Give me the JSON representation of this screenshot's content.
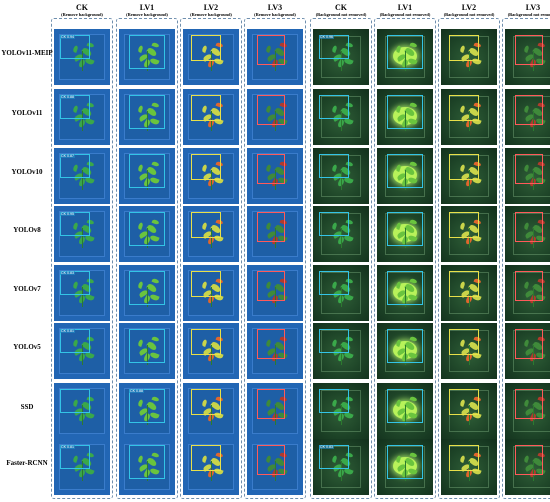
{
  "columns": [
    {
      "title": "CK",
      "subtitle": "(Remove background)"
    },
    {
      "title": "LV1",
      "subtitle": "(Remove background)"
    },
    {
      "title": "LV2",
      "subtitle": "(Remove background)"
    },
    {
      "title": "LV3",
      "subtitle": "(Remove background)"
    },
    {
      "title": "CK",
      "subtitle": "(Background not removed)"
    },
    {
      "title": "LV1",
      "subtitle": "(Background not removed)"
    },
    {
      "title": "LV2",
      "subtitle": "(Background not removed)"
    },
    {
      "title": "LV3",
      "subtitle": "(Background not removed)"
    }
  ],
  "rows": [
    {
      "label": "YOLOv11-MEIP",
      "dets": [
        "CK 0.94",
        "",
        "",
        "",
        "CK 0.96",
        "",
        "",
        ""
      ]
    },
    {
      "label": "YOLOv11",
      "dets": [
        "CK 0.88",
        "",
        "",
        "",
        "",
        "",
        "",
        ""
      ]
    },
    {
      "label": "YOLOv10",
      "dets": [
        "CK 0.87",
        "",
        "",
        "",
        "",
        "",
        "",
        ""
      ]
    },
    {
      "label": "YOLOv8",
      "dets": [
        "CK 0.95",
        "",
        "",
        "",
        "",
        "",
        "",
        ""
      ]
    },
    {
      "label": "YOLOv7",
      "dets": [
        "CK 0.83",
        "",
        "",
        "",
        "",
        "",
        "",
        ""
      ]
    },
    {
      "label": "YOLOv5",
      "dets": [
        "CK 0.81",
        "",
        "",
        "",
        "",
        "",
        "",
        ""
      ]
    },
    {
      "label": "SSD",
      "dets": [
        "",
        "CK 0.88",
        "",
        "",
        "",
        "",
        "",
        ""
      ]
    },
    {
      "label": "Faster-RCNN",
      "dets": [
        "CK 0.81",
        "",
        "",
        "",
        "CK 0.83",
        "",
        "",
        ""
      ]
    }
  ]
}
